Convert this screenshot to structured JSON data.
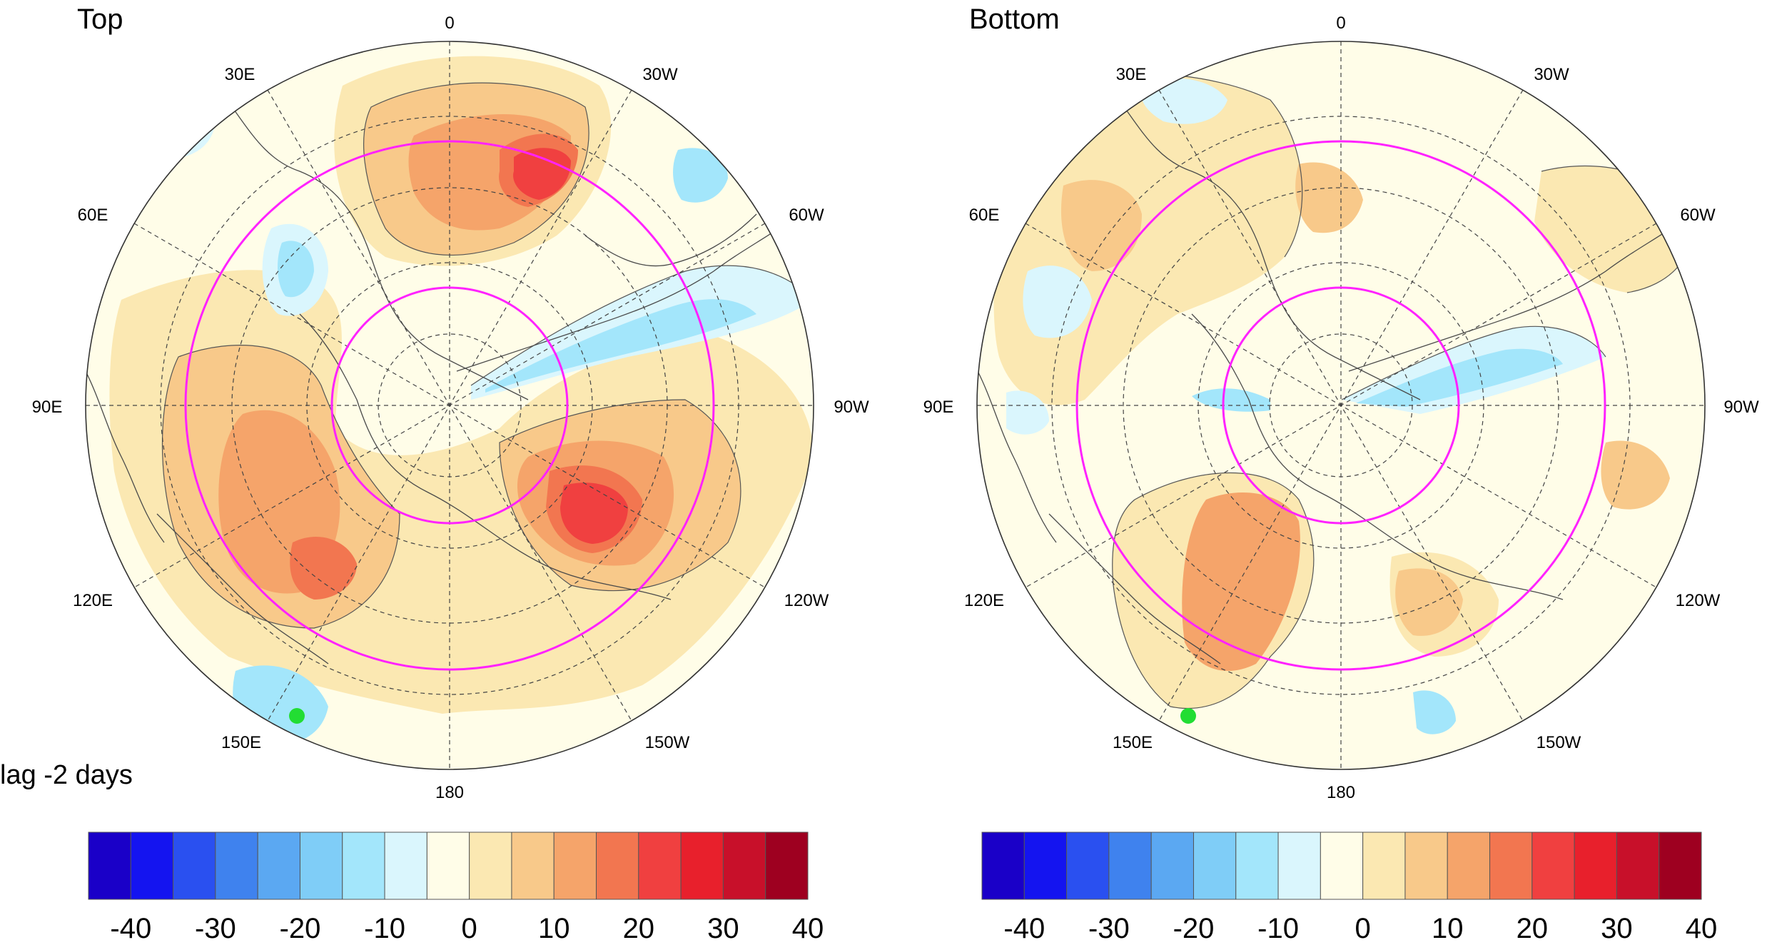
{
  "panels": [
    {
      "id": "top",
      "title": "Top",
      "lon_labels": [
        "0",
        "30W",
        "60W",
        "90W",
        "120W",
        "150W",
        "180",
        "150E",
        "120E",
        "90E",
        "60E",
        "30E"
      ],
      "marker_color": "#22dd33"
    },
    {
      "id": "bottom",
      "title": "Bottom",
      "lon_labels": [
        "0",
        "30W",
        "60W",
        "90W",
        "120W",
        "150W",
        "180",
        "150E",
        "120E",
        "90E",
        "60E",
        "30E"
      ],
      "marker_color": "#22dd33"
    }
  ],
  "lag_label": "lag -2 days",
  "colorbar": {
    "colors": [
      "#1a00c8",
      "#1414f0",
      "#2a50f0",
      "#3f82ee",
      "#5ba8f2",
      "#7fcdf7",
      "#a3e6fb",
      "#daf6fd",
      "#fffde8",
      "#fbe8b2",
      "#f8c98a",
      "#f5a46a",
      "#f27650",
      "#f04040",
      "#e8202c",
      "#c8102a",
      "#9e0020"
    ],
    "tick_labels": [
      "-40",
      "-30",
      "-20",
      "-10",
      "0",
      "10",
      "20",
      "30",
      "40"
    ]
  },
  "colors": {
    "circle_line": "#ff22ff",
    "coast": "#4a4a4a",
    "grid": "#444444"
  }
}
